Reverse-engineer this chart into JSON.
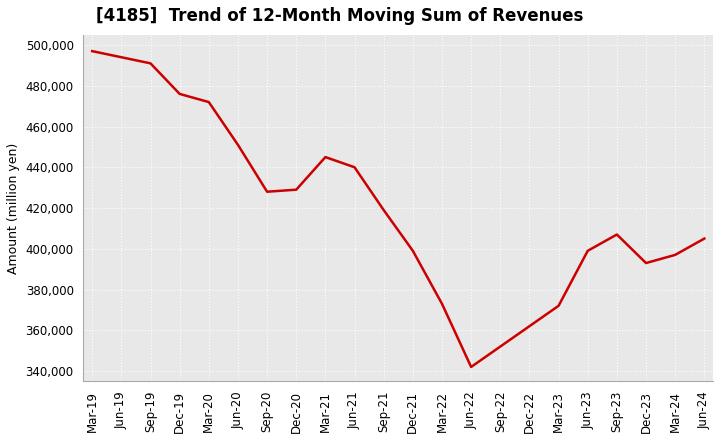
{
  "title": "[4185]  Trend of 12-Month Moving Sum of Revenues",
  "ylabel": "Amount (million yen)",
  "background_color": "#ffffff",
  "plot_bg_color": "#e8e8e8",
  "grid_color": "#ffffff",
  "line_color": "#cc0000",
  "ylim": [
    335000,
    505000
  ],
  "yticks": [
    340000,
    360000,
    380000,
    400000,
    420000,
    440000,
    460000,
    480000,
    500000
  ],
  "x_labels": [
    "Mar-19",
    "Jun-19",
    "Sep-19",
    "Dec-19",
    "Mar-20",
    "Jun-20",
    "Sep-20",
    "Dec-20",
    "Mar-21",
    "Jun-21",
    "Sep-21",
    "Dec-21",
    "Mar-22",
    "Jun-22",
    "Sep-22",
    "Dec-22",
    "Mar-23",
    "Jun-23",
    "Sep-23",
    "Dec-23",
    "Mar-24",
    "Jun-24"
  ],
  "values": [
    497000,
    494000,
    491000,
    476000,
    472000,
    451000,
    428000,
    429000,
    445000,
    440000,
    419000,
    399000,
    373000,
    342000,
    352000,
    362000,
    372000,
    399000,
    407000,
    393000,
    397000,
    405000
  ]
}
